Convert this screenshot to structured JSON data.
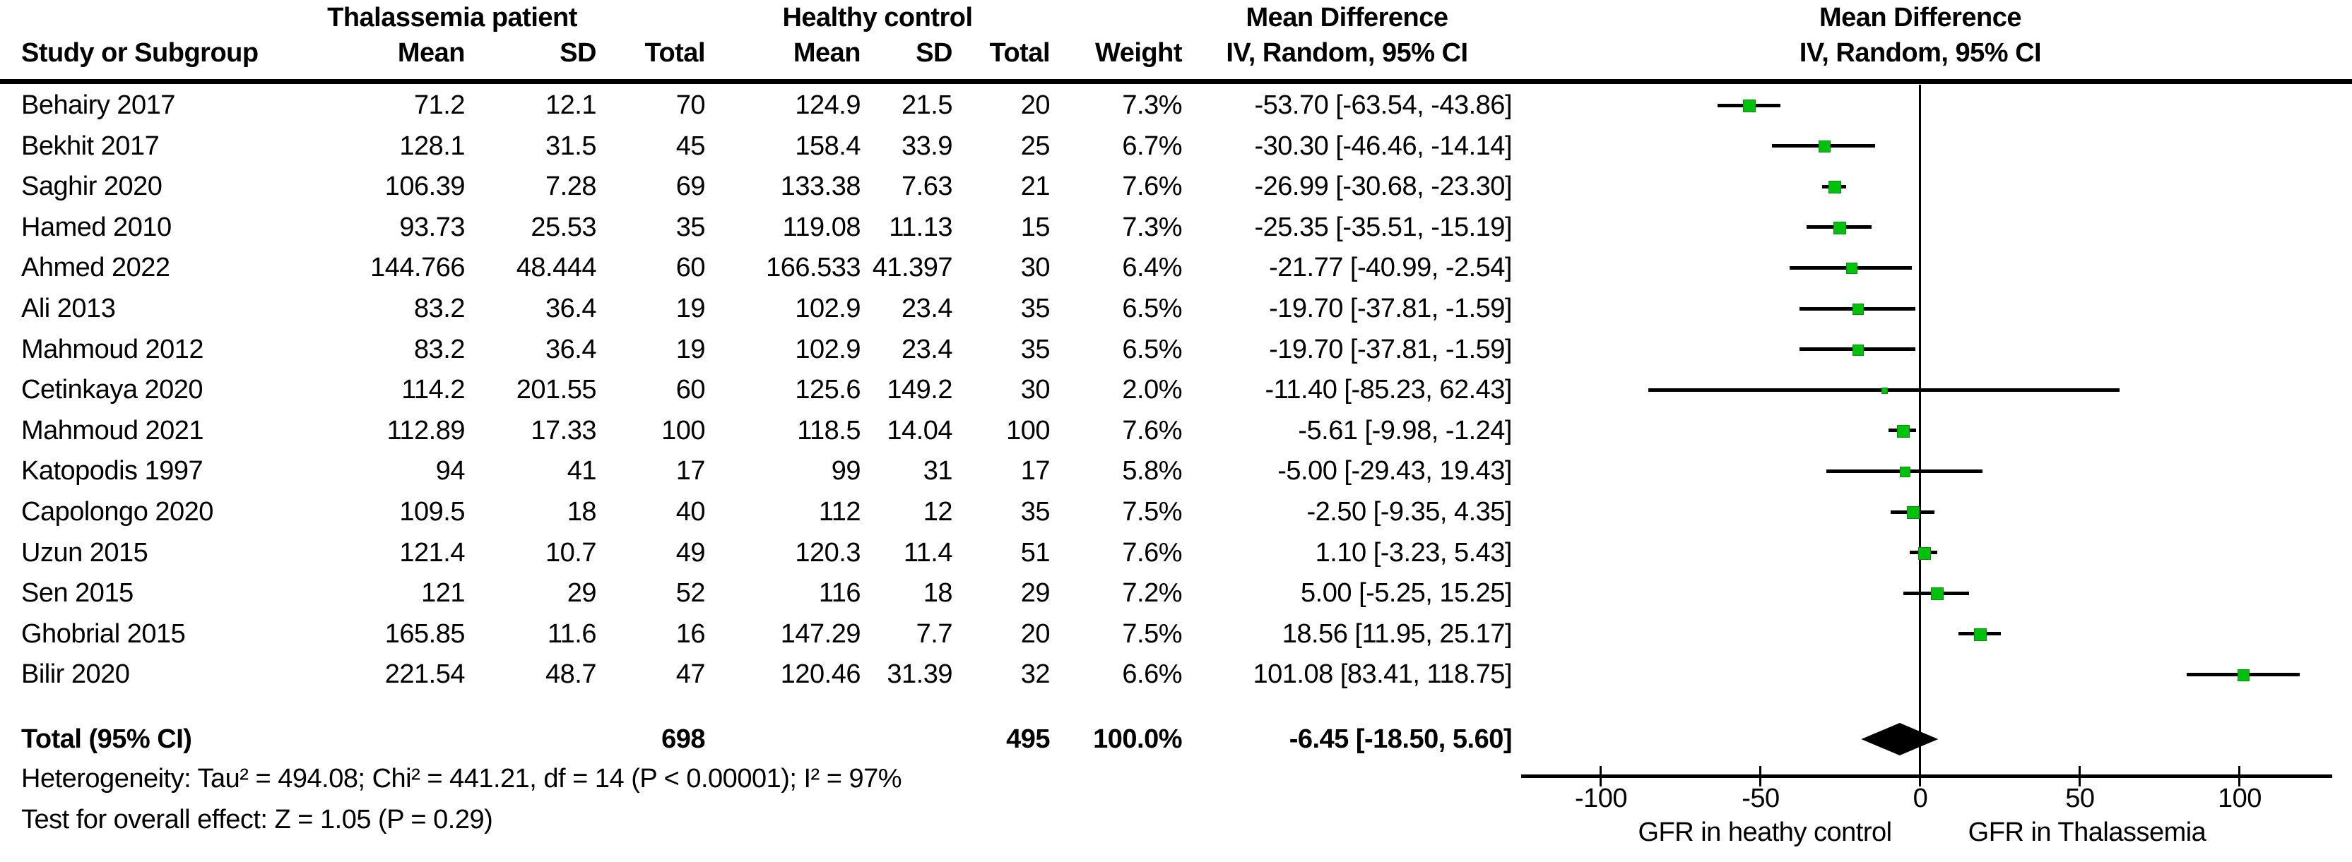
{
  "headers": {
    "group_thal": "Thalassemia patient",
    "group_control": "Healthy control",
    "md_text_col": "Mean Difference",
    "md_plot_col": "Mean Difference",
    "study": "Study or Subgroup",
    "t_mean": "Mean",
    "t_sd": "SD",
    "t_total": "Total",
    "c_mean": "Mean",
    "c_sd": "SD",
    "c_total": "Total",
    "weight": "Weight",
    "ci_text_col": "IV, Random, 95% CI",
    "ci_plot_col": "IV, Random, 95% CI"
  },
  "chart_data": {
    "type": "forest",
    "effect_measure": "Mean Difference, IV, Random, 95% CI",
    "marker_color": "#00c20c",
    "studies": [
      {
        "name": "Behairy 2017",
        "t_mean": "71.2",
        "t_sd": "12.1",
        "t_total": "70",
        "c_mean": "124.9",
        "c_sd": "21.5",
        "c_total": "20",
        "weight": "7.3%",
        "ci_label": "-53.70 [-63.54, -43.86]",
        "md": -53.7,
        "lo": -63.54,
        "hi": -43.86
      },
      {
        "name": "Bekhit 2017",
        "t_mean": "128.1",
        "t_sd": "31.5",
        "t_total": "45",
        "c_mean": "158.4",
        "c_sd": "33.9",
        "c_total": "25",
        "weight": "6.7%",
        "ci_label": "-30.30 [-46.46, -14.14]",
        "md": -30.3,
        "lo": -46.46,
        "hi": -14.14
      },
      {
        "name": "Saghir 2020",
        "t_mean": "106.39",
        "t_sd": "7.28",
        "t_total": "69",
        "c_mean": "133.38",
        "c_sd": "7.63",
        "c_total": "21",
        "weight": "7.6%",
        "ci_label": "-26.99 [-30.68, -23.30]",
        "md": -26.99,
        "lo": -30.68,
        "hi": -23.3
      },
      {
        "name": "Hamed 2010",
        "t_mean": "93.73",
        "t_sd": "25.53",
        "t_total": "35",
        "c_mean": "119.08",
        "c_sd": "11.13",
        "c_total": "15",
        "weight": "7.3%",
        "ci_label": "-25.35 [-35.51, -15.19]",
        "md": -25.35,
        "lo": -35.51,
        "hi": -15.19
      },
      {
        "name": "Ahmed 2022",
        "t_mean": "144.766",
        "t_sd": "48.444",
        "t_total": "60",
        "c_mean": "166.533",
        "c_sd": "41.397",
        "c_total": "30",
        "weight": "6.4%",
        "ci_label": "-21.77 [-40.99, -2.54]",
        "md": -21.77,
        "lo": -40.99,
        "hi": -2.54
      },
      {
        "name": "Ali 2013",
        "t_mean": "83.2",
        "t_sd": "36.4",
        "t_total": "19",
        "c_mean": "102.9",
        "c_sd": "23.4",
        "c_total": "35",
        "weight": "6.5%",
        "ci_label": "-19.70 [-37.81, -1.59]",
        "md": -19.7,
        "lo": -37.81,
        "hi": -1.59
      },
      {
        "name": "Mahmoud 2012",
        "t_mean": "83.2",
        "t_sd": "36.4",
        "t_total": "19",
        "c_mean": "102.9",
        "c_sd": "23.4",
        "c_total": "35",
        "weight": "6.5%",
        "ci_label": "-19.70 [-37.81, -1.59]",
        "md": -19.7,
        "lo": -37.81,
        "hi": -1.59
      },
      {
        "name": "Cetinkaya 2020",
        "t_mean": "114.2",
        "t_sd": "201.55",
        "t_total": "60",
        "c_mean": "125.6",
        "c_sd": "149.2",
        "c_total": "30",
        "weight": "2.0%",
        "ci_label": "-11.40 [-85.23, 62.43]",
        "md": -11.4,
        "lo": -85.23,
        "hi": 62.43
      },
      {
        "name": "Mahmoud 2021",
        "t_mean": "112.89",
        "t_sd": "17.33",
        "t_total": "100",
        "c_mean": "118.5",
        "c_sd": "14.04",
        "c_total": "100",
        "weight": "7.6%",
        "ci_label": "-5.61 [-9.98, -1.24]",
        "md": -5.61,
        "lo": -9.98,
        "hi": -1.24
      },
      {
        "name": "Katopodis 1997",
        "t_mean": "94",
        "t_sd": "41",
        "t_total": "17",
        "c_mean": "99",
        "c_sd": "31",
        "c_total": "17",
        "weight": "5.8%",
        "ci_label": "-5.00 [-29.43, 19.43]",
        "md": -5.0,
        "lo": -29.43,
        "hi": 19.43
      },
      {
        "name": "Capolongo 2020",
        "t_mean": "109.5",
        "t_sd": "18",
        "t_total": "40",
        "c_mean": "112",
        "c_sd": "12",
        "c_total": "35",
        "weight": "7.5%",
        "ci_label": "-2.50 [-9.35, 4.35]",
        "md": -2.5,
        "lo": -9.35,
        "hi": 4.35
      },
      {
        "name": "Uzun 2015",
        "t_mean": "121.4",
        "t_sd": "10.7",
        "t_total": "49",
        "c_mean": "120.3",
        "c_sd": "11.4",
        "c_total": "51",
        "weight": "7.6%",
        "ci_label": "1.10 [-3.23, 5.43]",
        "md": 1.1,
        "lo": -3.23,
        "hi": 5.43
      },
      {
        "name": "Sen 2015",
        "t_mean": "121",
        "t_sd": "29",
        "t_total": "52",
        "c_mean": "116",
        "c_sd": "18",
        "c_total": "29",
        "weight": "7.2%",
        "ci_label": "5.00 [-5.25, 15.25]",
        "md": 5.0,
        "lo": -5.25,
        "hi": 15.25
      },
      {
        "name": "Ghobrial 2015",
        "t_mean": "165.85",
        "t_sd": "11.6",
        "t_total": "16",
        "c_mean": "147.29",
        "c_sd": "7.7",
        "c_total": "20",
        "weight": "7.5%",
        "ci_label": "18.56 [11.95, 25.17]",
        "md": 18.56,
        "lo": 11.95,
        "hi": 25.17
      },
      {
        "name": "Bilir 2020",
        "t_mean": "221.54",
        "t_sd": "48.7",
        "t_total": "47",
        "c_mean": "120.46",
        "c_sd": "31.39",
        "c_total": "32",
        "weight": "6.6%",
        "ci_label": "101.08 [83.41, 118.75]",
        "md": 101.08,
        "lo": 83.41,
        "hi": 118.75
      }
    ],
    "total": {
      "label": "Total (95% CI)",
      "t_total": "698",
      "c_total": "495",
      "weight": "100.0%",
      "ci_label": "-6.45 [-18.50, 5.60]",
      "md": -6.45,
      "lo": -18.5,
      "hi": 5.6
    },
    "axis": {
      "ticks": [
        -100,
        -50,
        0,
        50,
        100
      ],
      "range": [
        -125,
        129
      ]
    },
    "xlabel_left": "GFR in heathy control",
    "xlabel_right": "GFR in Thalassemia",
    "footnotes": {
      "heterogeneity": "Heterogeneity: Tau² = 494.08; Chi² = 441.21, df = 14 (P < 0.00001); I² = 97%",
      "overall_effect": "Test for overall effect: Z = 1.05 (P = 0.29)"
    }
  }
}
